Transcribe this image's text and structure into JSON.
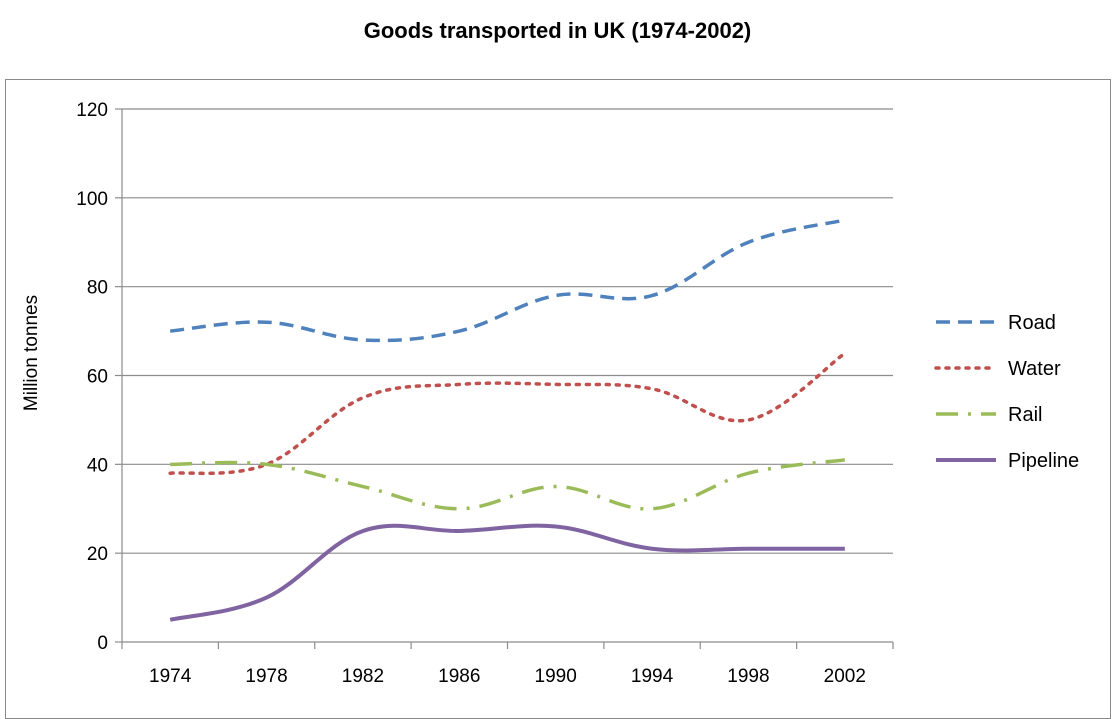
{
  "chart_data": {
    "type": "line",
    "title": "Goods transported in  UK (1974-2002)",
    "xlabel": "",
    "ylabel": "Million tonnes",
    "categories": [
      "1974",
      "1978",
      "1982",
      "1986",
      "1990",
      "1994",
      "1998",
      "2002"
    ],
    "ylim": [
      0,
      120
    ],
    "yticks": [
      0,
      20,
      40,
      60,
      80,
      100,
      120
    ],
    "grid": true,
    "legend_position": "right",
    "series": [
      {
        "name": "Road",
        "color": "#4f81bd",
        "style": "dashed",
        "values": [
          70,
          72,
          68,
          70,
          78,
          78,
          90,
          95
        ]
      },
      {
        "name": "Water",
        "color": "#c0504d",
        "style": "dotted",
        "values": [
          38,
          40,
          55,
          58,
          58,
          57,
          50,
          65
        ]
      },
      {
        "name": "Rail",
        "color": "#9bbb59",
        "style": "dash-dot",
        "values": [
          40,
          40,
          35,
          30,
          35,
          30,
          38,
          41
        ]
      },
      {
        "name": "Pipeline",
        "color": "#8064a2",
        "style": "solid",
        "values": [
          5,
          10,
          25,
          25,
          26,
          21,
          21,
          21
        ]
      }
    ]
  }
}
